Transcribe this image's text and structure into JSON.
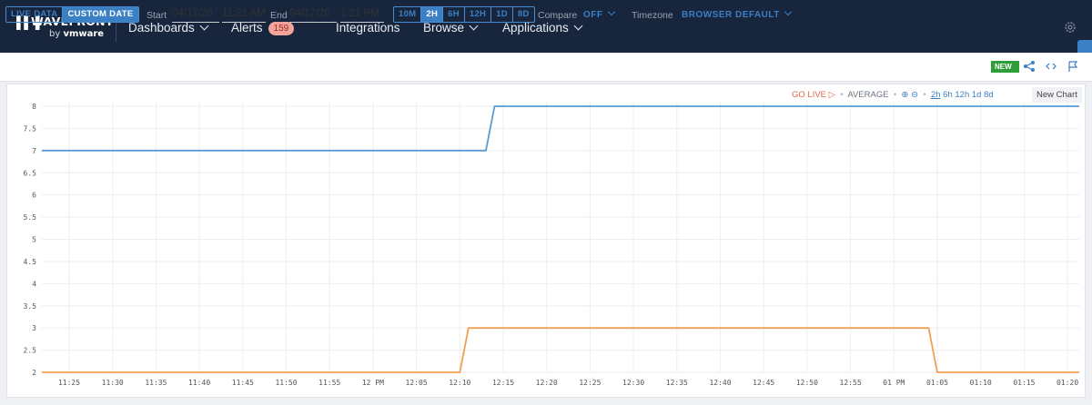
{
  "brand": {
    "name": "WAVEFRONT",
    "by": "by",
    "vendor": "vmware"
  },
  "nav": {
    "items": [
      {
        "label": "Dashboards",
        "dropdown": true
      },
      {
        "label": "Alerts",
        "count": "159"
      },
      {
        "label": "Integrations"
      },
      {
        "label": "Browse",
        "dropdown": true
      },
      {
        "label": "Applications",
        "dropdown": true
      }
    ],
    "settings_icon": "gear-icon"
  },
  "toolbar": {
    "mode_live": "LIVE DATA",
    "mode_custom": "CUSTOM DATE",
    "start_label": "Start",
    "start_date": "04/17/20",
    "start_time": "11:21 AM",
    "end_label": "End",
    "end_date": "04/17/20",
    "end_time": "1:21 PM",
    "ranges": [
      "10M",
      "2H",
      "6H",
      "12H",
      "1D",
      "8D"
    ],
    "active_range": "2H",
    "compare_label": "Compare",
    "compare_value": "OFF",
    "timezone_label": "Timezone",
    "timezone_value": "BROWSER DEFAULT",
    "new_badge": "NEW"
  },
  "chart_controls": {
    "go_live": "GO LIVE ▷",
    "summarization": "AVERAGE",
    "windows": [
      "2h",
      "6h",
      "12h",
      "1d",
      "8d"
    ],
    "active_window": "2h",
    "new_chart": "New Chart"
  },
  "chart_data": {
    "type": "line",
    "x_ticks": [
      "11:25",
      "11:30",
      "11:35",
      "11:40",
      "11:45",
      "11:50",
      "11:55",
      "12 PM",
      "12:05",
      "12:10",
      "12:15",
      "12:20",
      "12:25",
      "12:30",
      "12:35",
      "12:40",
      "12:45",
      "12:50",
      "12:55",
      "01 PM",
      "01:05",
      "01:10",
      "01:15",
      "01:20"
    ],
    "y_ticks": [
      "2",
      "2.5",
      "3",
      "3.5",
      "4",
      "4.5",
      "5",
      "5.5",
      "6",
      "6.5",
      "7",
      "7.5",
      "8"
    ],
    "ylim": [
      2,
      8
    ],
    "xlim_minutes": [
      0,
      120
    ],
    "series": [
      {
        "color": "#5a9bd4",
        "points": [
          [
            "11:21",
            7
          ],
          [
            "12:13",
            7
          ],
          [
            "12:14",
            8
          ],
          [
            "01:21",
            8
          ]
        ]
      },
      {
        "color": "#f0a050",
        "points": [
          [
            "11:21",
            2
          ],
          [
            "12:10",
            2
          ],
          [
            "12:11",
            3
          ],
          [
            "01:04",
            3
          ],
          [
            "01:05",
            2
          ],
          [
            "01:21",
            2
          ]
        ]
      }
    ],
    "grid": true
  }
}
